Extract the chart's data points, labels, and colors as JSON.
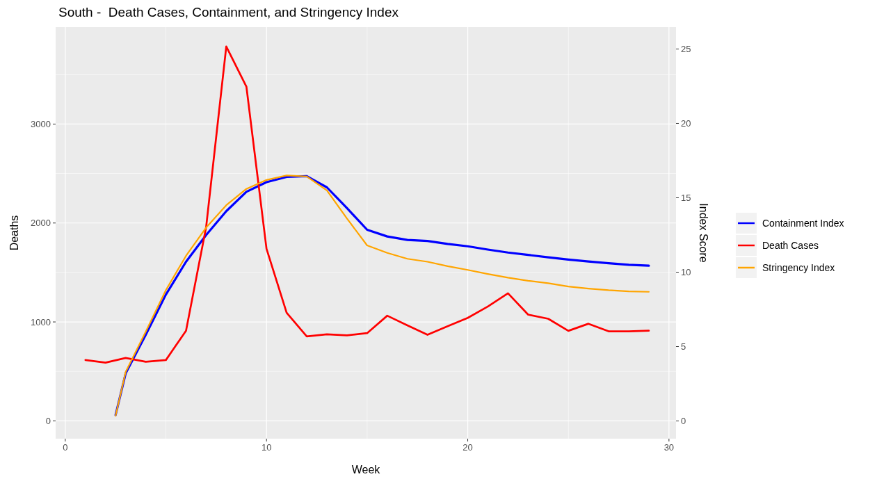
{
  "chart_data": {
    "type": "line",
    "title": "South -  Death Cases, Containment, and Stringency Index",
    "xlabel": "Week",
    "ylabel": "Deaths",
    "y2label": "Index Score",
    "xlim": [
      -0.48,
      30.35
    ],
    "xticks": [
      0,
      10,
      20,
      30
    ],
    "ylim": [
      -180,
      3980
    ],
    "yticks": [
      0,
      1000,
      2000,
      3000
    ],
    "y2lim": [
      -1.19,
      26.47
    ],
    "y2ticks": [
      0,
      5,
      10,
      15,
      20,
      25
    ],
    "grid": true,
    "legend": "right",
    "line_style": "solid",
    "marker": "none",
    "series": [
      {
        "name": "Containment Index",
        "color": "#0000ff",
        "axis": "y2",
        "x": [
          2.5,
          3,
          4,
          5,
          6,
          7,
          8,
          9,
          10,
          11,
          12,
          13,
          14,
          15,
          16,
          17,
          18,
          19,
          20,
          21,
          22,
          23,
          24,
          25,
          26,
          27,
          28,
          29
        ],
        "values": [
          0.4,
          3.2,
          5.8,
          8.5,
          10.7,
          12.5,
          14.1,
          15.4,
          16.05,
          16.4,
          16.45,
          15.7,
          14.3,
          12.85,
          12.4,
          12.17,
          12.1,
          11.9,
          11.74,
          11.52,
          11.32,
          11.16,
          11.0,
          10.85,
          10.72,
          10.6,
          10.5,
          10.44
        ]
      },
      {
        "name": "Death Cases",
        "color": "#ff0000",
        "x": [
          1,
          2,
          3,
          4,
          5,
          6,
          7,
          8,
          9,
          10,
          11,
          12,
          13,
          14,
          15,
          16,
          17,
          18,
          19,
          20,
          21,
          22,
          23,
          24,
          25,
          26,
          27,
          28,
          29
        ],
        "values": [
          615,
          589,
          636,
          597,
          615,
          911,
          1960,
          3784,
          3379,
          1739,
          1093,
          854,
          875,
          864,
          887,
          1063,
          966,
          870,
          957,
          1041,
          1156,
          1290,
          1074,
          1032,
          910,
          982,
          905,
          905,
          912
        ]
      },
      {
        "name": "Stringency Index",
        "color": "#ffa500",
        "axis": "y2",
        "x": [
          2.5,
          3,
          4,
          5,
          6,
          7,
          8,
          9,
          10,
          11,
          12,
          13,
          14,
          15,
          16,
          17,
          18,
          19,
          20,
          21,
          22,
          23,
          24,
          25,
          26,
          27,
          28,
          29
        ],
        "values": [
          0.35,
          3.3,
          6.0,
          8.8,
          11.1,
          13.0,
          14.5,
          15.6,
          16.2,
          16.5,
          16.43,
          15.5,
          13.6,
          11.8,
          11.3,
          10.9,
          10.7,
          10.4,
          10.15,
          9.88,
          9.63,
          9.42,
          9.26,
          9.04,
          8.9,
          8.79,
          8.71,
          8.68
        ]
      }
    ]
  }
}
